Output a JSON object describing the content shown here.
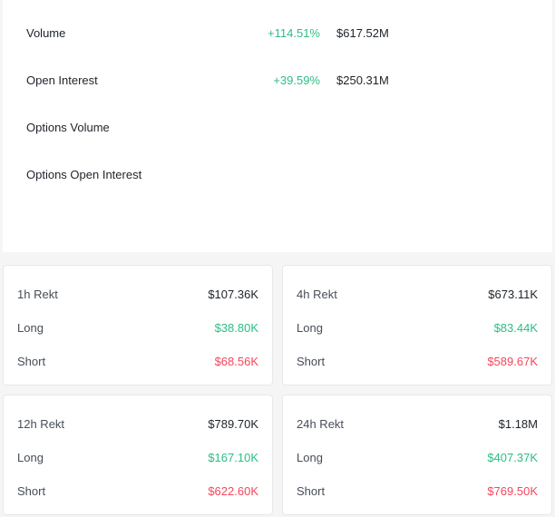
{
  "stats": [
    {
      "label": "Volume",
      "change": "+114.51%",
      "value": "$617.52M"
    },
    {
      "label": "Open Interest",
      "change": "+39.59%",
      "value": "$250.31M"
    },
    {
      "label": "Options Volume"
    },
    {
      "label": "Options Open Interest"
    }
  ],
  "rekt": [
    {
      "title": "1h Rekt",
      "total": "$107.36K",
      "long_label": "Long",
      "long": "$38.80K",
      "short_label": "Short",
      "short": "$68.56K"
    },
    {
      "title": "4h Rekt",
      "total": "$673.11K",
      "long_label": "Long",
      "long": "$83.44K",
      "short_label": "Short",
      "short": "$589.67K"
    },
    {
      "title": "12h Rekt",
      "total": "$789.70K",
      "long_label": "Long",
      "long": "$167.10K",
      "short_label": "Short",
      "short": "$622.60K"
    },
    {
      "title": "24h Rekt",
      "total": "$1.18M",
      "long_label": "Long",
      "long": "$407.37K",
      "short_label": "Short",
      "short": "$769.50K"
    }
  ]
}
